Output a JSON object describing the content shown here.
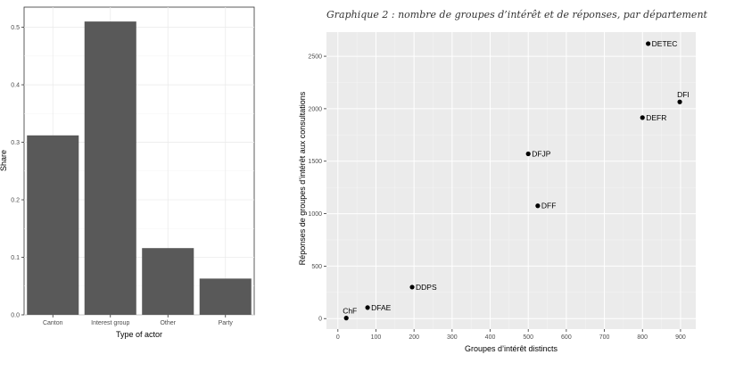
{
  "chart_data": [
    {
      "type": "bar",
      "categories": [
        "Canton",
        "Interest group",
        "Other",
        "Party"
      ],
      "values": [
        0.312,
        0.51,
        0.116,
        0.063
      ],
      "xlabel": "Type of actor",
      "ylabel": "Share",
      "ylim": [
        0,
        0.535
      ],
      "yticks": [
        0.0,
        0.1,
        0.2,
        0.3,
        0.4,
        0.5
      ],
      "ytick_labels": [
        "0.0",
        "0.1",
        "0.2",
        "0.3",
        "0.4",
        "0.5"
      ],
      "grid": true,
      "colors": {
        "bar": "#595959",
        "grid": "#ebebeb",
        "panel": "#ffffff",
        "border": "#333333",
        "text": "#4d4d4d"
      }
    },
    {
      "type": "scatter",
      "title": "Graphique 2 : nombre de groupes d’intérêt et de réponses, par département",
      "xlabel": "Groupes d’intérêt distincts",
      "ylabel": "Réponses de groupes d’intérêt aux consultations",
      "xlim": [
        -30,
        940
      ],
      "ylim": [
        -100,
        2730
      ],
      "xticks": [
        0,
        100,
        200,
        300,
        400,
        500,
        600,
        700,
        800,
        900
      ],
      "xtick_labels": [
        "0",
        "100",
        "200",
        "300",
        "400",
        "500",
        "600",
        "700",
        "800",
        "900"
      ],
      "yticks": [
        0,
        500,
        1000,
        1500,
        2000,
        2500
      ],
      "ytick_labels": [
        "0",
        "500",
        "1000",
        "1500",
        "2000",
        "2500"
      ],
      "grid": true,
      "points": [
        {
          "label": "ChF",
          "x": 22,
          "y": 5
        },
        {
          "label": "DFAE",
          "x": 78,
          "y": 105
        },
        {
          "label": "DDPS",
          "x": 195,
          "y": 300
        },
        {
          "label": "DFF",
          "x": 525,
          "y": 1075
        },
        {
          "label": "DFJP",
          "x": 500,
          "y": 1570
        },
        {
          "label": "DEFR",
          "x": 800,
          "y": 1915
        },
        {
          "label": "DFI",
          "x": 898,
          "y": 2065
        },
        {
          "label": "DETEC",
          "x": 815,
          "y": 2620
        }
      ],
      "colors": {
        "point": "#000000",
        "panel": "#ebebeb",
        "grid": "#ffffff",
        "text": "#4d4d4d",
        "title": "#333333"
      }
    }
  ]
}
